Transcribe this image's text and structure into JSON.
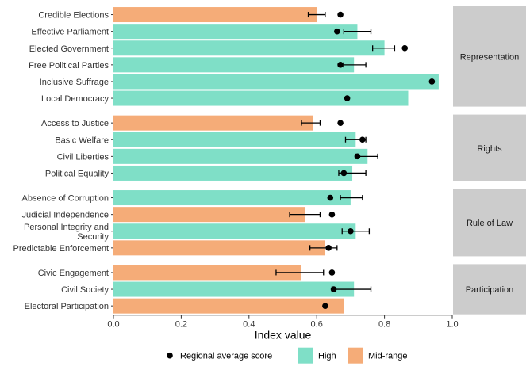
{
  "chart_data": {
    "type": "bar",
    "orientation": "horizontal",
    "xlabel": "Index value",
    "xlim": [
      0,
      1.0
    ],
    "xticks": [
      "0.0",
      "0.2",
      "0.4",
      "0.6",
      "0.8",
      "1.0"
    ],
    "xtick_values": [
      0,
      0.2,
      0.4,
      0.6,
      0.8,
      1.0
    ],
    "grid": false,
    "legend_position": "bottom",
    "legend": {
      "point_label": "Regional average score",
      "fill_items": [
        {
          "key": "High",
          "label": "High"
        },
        {
          "key": "Mid-range",
          "label": "Mid-range"
        }
      ]
    },
    "colors": {
      "High": "#7fdfc7",
      "Mid-range": "#f5ac78",
      "point": "#000000",
      "strip": "#cccccc"
    },
    "facets": [
      {
        "name": "Representation",
        "rows": [
          {
            "label": "Credible Elections",
            "value": 0.6,
            "level": "Mid-range",
            "avg": 0.67,
            "err": [
              0.575,
              0.625
            ]
          },
          {
            "label": "Effective Parliament",
            "value": 0.72,
            "level": "High",
            "avg": 0.66,
            "err": [
              0.68,
              0.76
            ]
          },
          {
            "label": "Elected Government",
            "value": 0.8,
            "level": "High",
            "avg": 0.86,
            "err": [
              0.765,
              0.83
            ]
          },
          {
            "label": "Free Political Parties",
            "value": 0.71,
            "level": "High",
            "avg": 0.67,
            "err": [
              0.68,
              0.745
            ]
          },
          {
            "label": "Inclusive Suffrage",
            "value": 0.96,
            "level": "High",
            "avg": 0.94,
            "err": null
          },
          {
            "label": "Local Democracy",
            "value": 0.87,
            "level": "High",
            "avg": 0.69,
            "err": null
          }
        ]
      },
      {
        "name": "Rights",
        "rows": [
          {
            "label": "Access to Justice",
            "value": 0.59,
            "level": "Mid-range",
            "avg": 0.67,
            "err": [
              0.555,
              0.61
            ]
          },
          {
            "label": "Basic Welfare",
            "value": 0.715,
            "level": "High",
            "avg": 0.735,
            "err": [
              0.685,
              0.745
            ]
          },
          {
            "label": "Civil Liberties",
            "value": 0.75,
            "level": "High",
            "avg": 0.72,
            "err": [
              0.715,
              0.78
            ]
          },
          {
            "label": "Political Equality",
            "value": 0.705,
            "level": "High",
            "avg": 0.68,
            "err": [
              0.665,
              0.745
            ]
          }
        ]
      },
      {
        "name": "Rule of Law",
        "rows": [
          {
            "label": "Absence of Corruption",
            "value": 0.7,
            "level": "High",
            "avg": 0.64,
            "err": [
              0.67,
              0.735
            ]
          },
          {
            "label": "Judicial Independence",
            "value": 0.565,
            "level": "Mid-range",
            "avg": 0.645,
            "err": [
              0.52,
              0.61
            ]
          },
          {
            "label": "Personal Integrity and|Security",
            "value": 0.715,
            "level": "High",
            "avg": 0.7,
            "err": [
              0.675,
              0.755
            ]
          },
          {
            "label": "Predictable Enforcement",
            "value": 0.625,
            "level": "Mid-range",
            "avg": 0.635,
            "err": [
              0.58,
              0.66
            ]
          }
        ]
      },
      {
        "name": "Participation",
        "rows": [
          {
            "label": "Civic Engagement",
            "value": 0.555,
            "level": "Mid-range",
            "avg": 0.645,
            "err": [
              0.48,
              0.62
            ]
          },
          {
            "label": "Civil Society",
            "value": 0.71,
            "level": "High",
            "avg": 0.65,
            "err": [
              0.645,
              0.76
            ]
          },
          {
            "label": "Electoral Participation",
            "value": 0.68,
            "level": "Mid-range",
            "avg": 0.625,
            "err": null
          }
        ]
      }
    ]
  }
}
